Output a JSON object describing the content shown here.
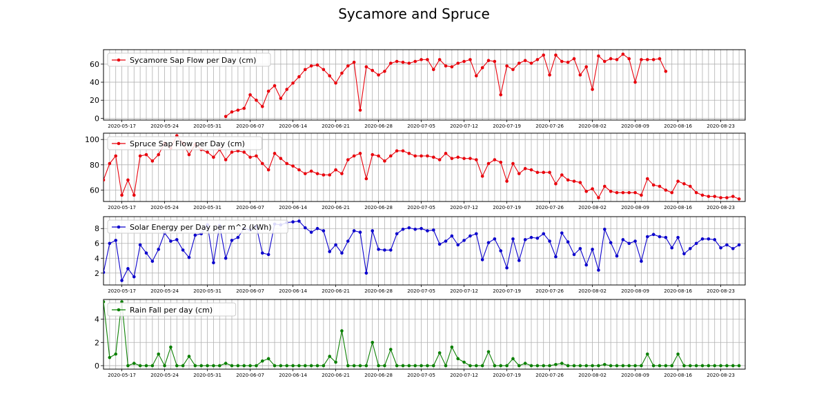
{
  "figure": {
    "title": "Sycamore and Spruce"
  },
  "x_ticks": [
    "2020-05-17",
    "2020-05-24",
    "2020-05-31",
    "2020-06-07",
    "2020-06-14",
    "2020-06-21",
    "2020-06-28",
    "2020-07-05",
    "2020-07-12",
    "2020-07-19",
    "2020-07-26",
    "2020-08-02",
    "2020-08-09",
    "2020-08-16",
    "2020-08-23"
  ],
  "chart_data": [
    {
      "type": "line",
      "x_start": "2020-05-14",
      "x_end": "2020-08-27",
      "ylim": [
        -2,
        76
      ],
      "yticks": [
        0,
        20,
        40,
        60
      ],
      "grid": true,
      "legend": "upper-left",
      "color": "#e8000b",
      "series": [
        {
          "name": "Sycamore Sap Flow per Day (cm)",
          "start": "2020-06-03",
          "values": [
            2,
            7,
            9,
            11,
            26,
            20,
            13,
            30,
            36,
            22,
            32,
            39,
            46,
            54,
            58,
            59,
            54,
            47,
            39,
            50,
            58,
            62,
            9,
            57,
            53,
            48,
            52,
            61,
            63,
            62,
            61,
            63,
            65,
            65,
            54,
            65,
            58,
            57,
            61,
            63,
            65,
            47,
            56,
            64,
            63,
            26,
            58,
            54,
            61,
            64,
            61,
            65,
            70,
            48,
            70,
            63,
            62,
            66,
            48,
            57,
            32,
            69,
            63,
            66,
            65,
            71,
            66,
            40,
            65,
            65,
            65,
            66,
            52
          ]
        }
      ]
    },
    {
      "type": "line",
      "x_start": "2020-05-14",
      "x_end": "2020-08-27",
      "ylim": [
        51,
        105
      ],
      "yticks": [
        60,
        80,
        100
      ],
      "grid": true,
      "legend": "upper-left",
      "color": "#e8000b",
      "series": [
        {
          "name": "Spruce Sap Flow per Day (cm)",
          "start": "2020-05-14",
          "values": [
            68,
            81,
            87,
            56,
            68,
            56,
            87,
            88,
            83,
            88,
            97,
            93,
            103,
            97,
            88,
            96,
            92,
            90,
            86,
            92,
            84,
            90,
            91,
            90,
            86,
            87,
            81,
            76,
            89,
            85,
            81,
            79,
            76,
            73,
            75,
            73,
            72,
            72,
            76,
            73,
            84,
            87,
            89,
            69,
            88,
            87,
            83,
            87,
            91,
            91,
            89,
            87,
            87,
            87,
            86,
            84,
            89,
            85,
            86,
            85,
            85,
            84,
            71,
            81,
            84,
            82,
            67,
            81,
            73,
            77,
            76,
            74,
            74,
            74,
            65,
            72,
            68,
            67,
            66,
            59,
            61,
            54,
            63,
            59,
            58,
            58,
            58,
            58,
            56,
            69,
            64,
            63,
            60,
            58,
            67,
            65,
            63,
            58,
            56,
            55,
            55,
            54,
            54,
            55,
            53
          ]
        }
      ]
    },
    {
      "type": "line",
      "x_start": "2020-05-14",
      "x_end": "2020-08-27",
      "ylim": [
        0.4,
        9.6
      ],
      "yticks": [
        2,
        4,
        6,
        8
      ],
      "grid": true,
      "legend": "upper-left",
      "color": "#0a00cc",
      "series": [
        {
          "name": "Solar Energy per Day per m^2 (kWh)",
          "start": "2020-05-14",
          "values": [
            2.1,
            6.0,
            6.4,
            1.0,
            2.6,
            1.5,
            5.8,
            4.7,
            3.6,
            5.2,
            7.4,
            6.3,
            6.5,
            5.1,
            4.1,
            7.1,
            7.3,
            8.5,
            3.4,
            8.4,
            4.0,
            6.4,
            6.8,
            8.0,
            7.8,
            8.3,
            4.7,
            4.5,
            8.6,
            8.5,
            8.8,
            8.9,
            9.0,
            8.1,
            7.5,
            8.0,
            7.7,
            4.9,
            5.8,
            4.7,
            6.3,
            7.7,
            7.5,
            2.0,
            7.7,
            5.2,
            5.1,
            5.1,
            7.3,
            7.9,
            8.1,
            7.9,
            8.0,
            7.7,
            7.8,
            5.9,
            6.3,
            7.0,
            5.8,
            6.4,
            7.0,
            7.3,
            3.8,
            6.1,
            6.6,
            5.0,
            2.7,
            6.6,
            3.7,
            6.5,
            6.8,
            6.7,
            7.3,
            6.3,
            4.2,
            7.4,
            6.2,
            4.5,
            5.3,
            3.1,
            5.2,
            2.4,
            7.9,
            6.1,
            4.3,
            6.5,
            6.0,
            6.3,
            3.6,
            6.9,
            7.2,
            6.9,
            6.8,
            5.4,
            6.8,
            4.6,
            5.3,
            6.0,
            6.6,
            6.6,
            6.5,
            5.4,
            5.8,
            5.3,
            5.8
          ]
        }
      ]
    },
    {
      "type": "line",
      "x_start": "2020-05-14",
      "x_end": "2020-08-27",
      "ylim": [
        -0.3,
        5.7
      ],
      "yticks": [
        0,
        2,
        4
      ],
      "grid": true,
      "legend": "upper-left",
      "color": "#0a7f00",
      "series": [
        {
          "name": "Rain Fall per day (cm)",
          "start": "2020-05-14",
          "values": [
            5.5,
            0.7,
            1.0,
            5.5,
            0.0,
            0.2,
            0.0,
            0.0,
            0.0,
            1.0,
            0.0,
            1.6,
            0.0,
            0.0,
            0.8,
            0.0,
            0.0,
            0.0,
            0.0,
            0.0,
            0.2,
            0.0,
            0.0,
            0.0,
            0.0,
            0.0,
            0.4,
            0.6,
            0.0,
            0.0,
            0.0,
            0.0,
            0.0,
            0.0,
            0.0,
            0.0,
            0.0,
            0.8,
            0.3,
            3.0,
            0.0,
            0.0,
            0.0,
            0.0,
            2.0,
            0.0,
            0.0,
            1.4,
            0.0,
            0.0,
            0.0,
            0.0,
            0.0,
            0.0,
            0.0,
            1.1,
            0.0,
            1.6,
            0.6,
            0.3,
            0.0,
            0.0,
            0.0,
            1.2,
            0.0,
            0.0,
            0.0,
            0.6,
            0.0,
            0.2,
            0.0,
            0.0,
            0.0,
            0.0,
            0.1,
            0.2,
            0.0,
            0.0,
            0.0,
            0.0,
            0.0,
            0.0,
            0.1,
            0.0,
            0.0,
            0.0,
            0.0,
            0.0,
            0.0,
            1.0,
            0.0,
            0.0,
            0.0,
            0.0,
            1.0,
            0.0,
            0.0,
            0.0,
            0.0,
            0.0,
            0.0,
            0.0,
            0.0,
            0.0,
            0.0
          ]
        }
      ]
    }
  ]
}
